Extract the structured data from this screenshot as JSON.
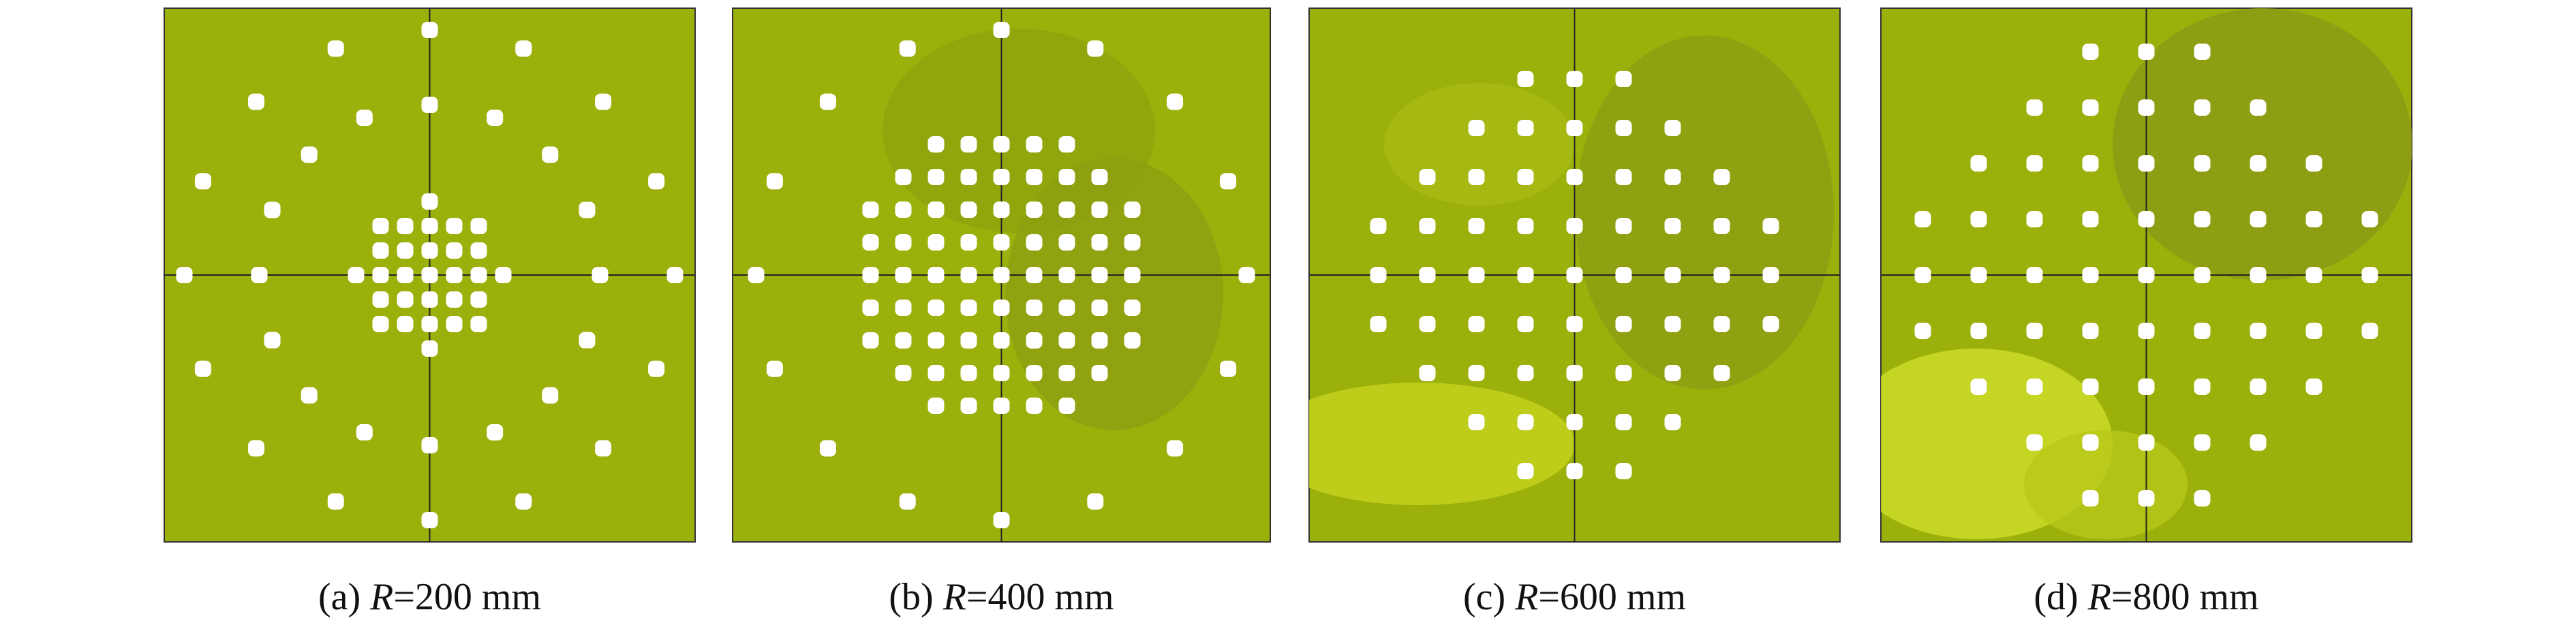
{
  "panels": [
    {
      "label": "(a)",
      "variable": "R",
      "value": "=200 mm"
    },
    {
      "label": "(b)",
      "variable": "R",
      "value": "=400 mm"
    },
    {
      "label": "(c)",
      "variable": "R",
      "value": "=600 mm"
    },
    {
      "label": "(d)",
      "variable": "R",
      "value": "=800 mm"
    }
  ]
}
